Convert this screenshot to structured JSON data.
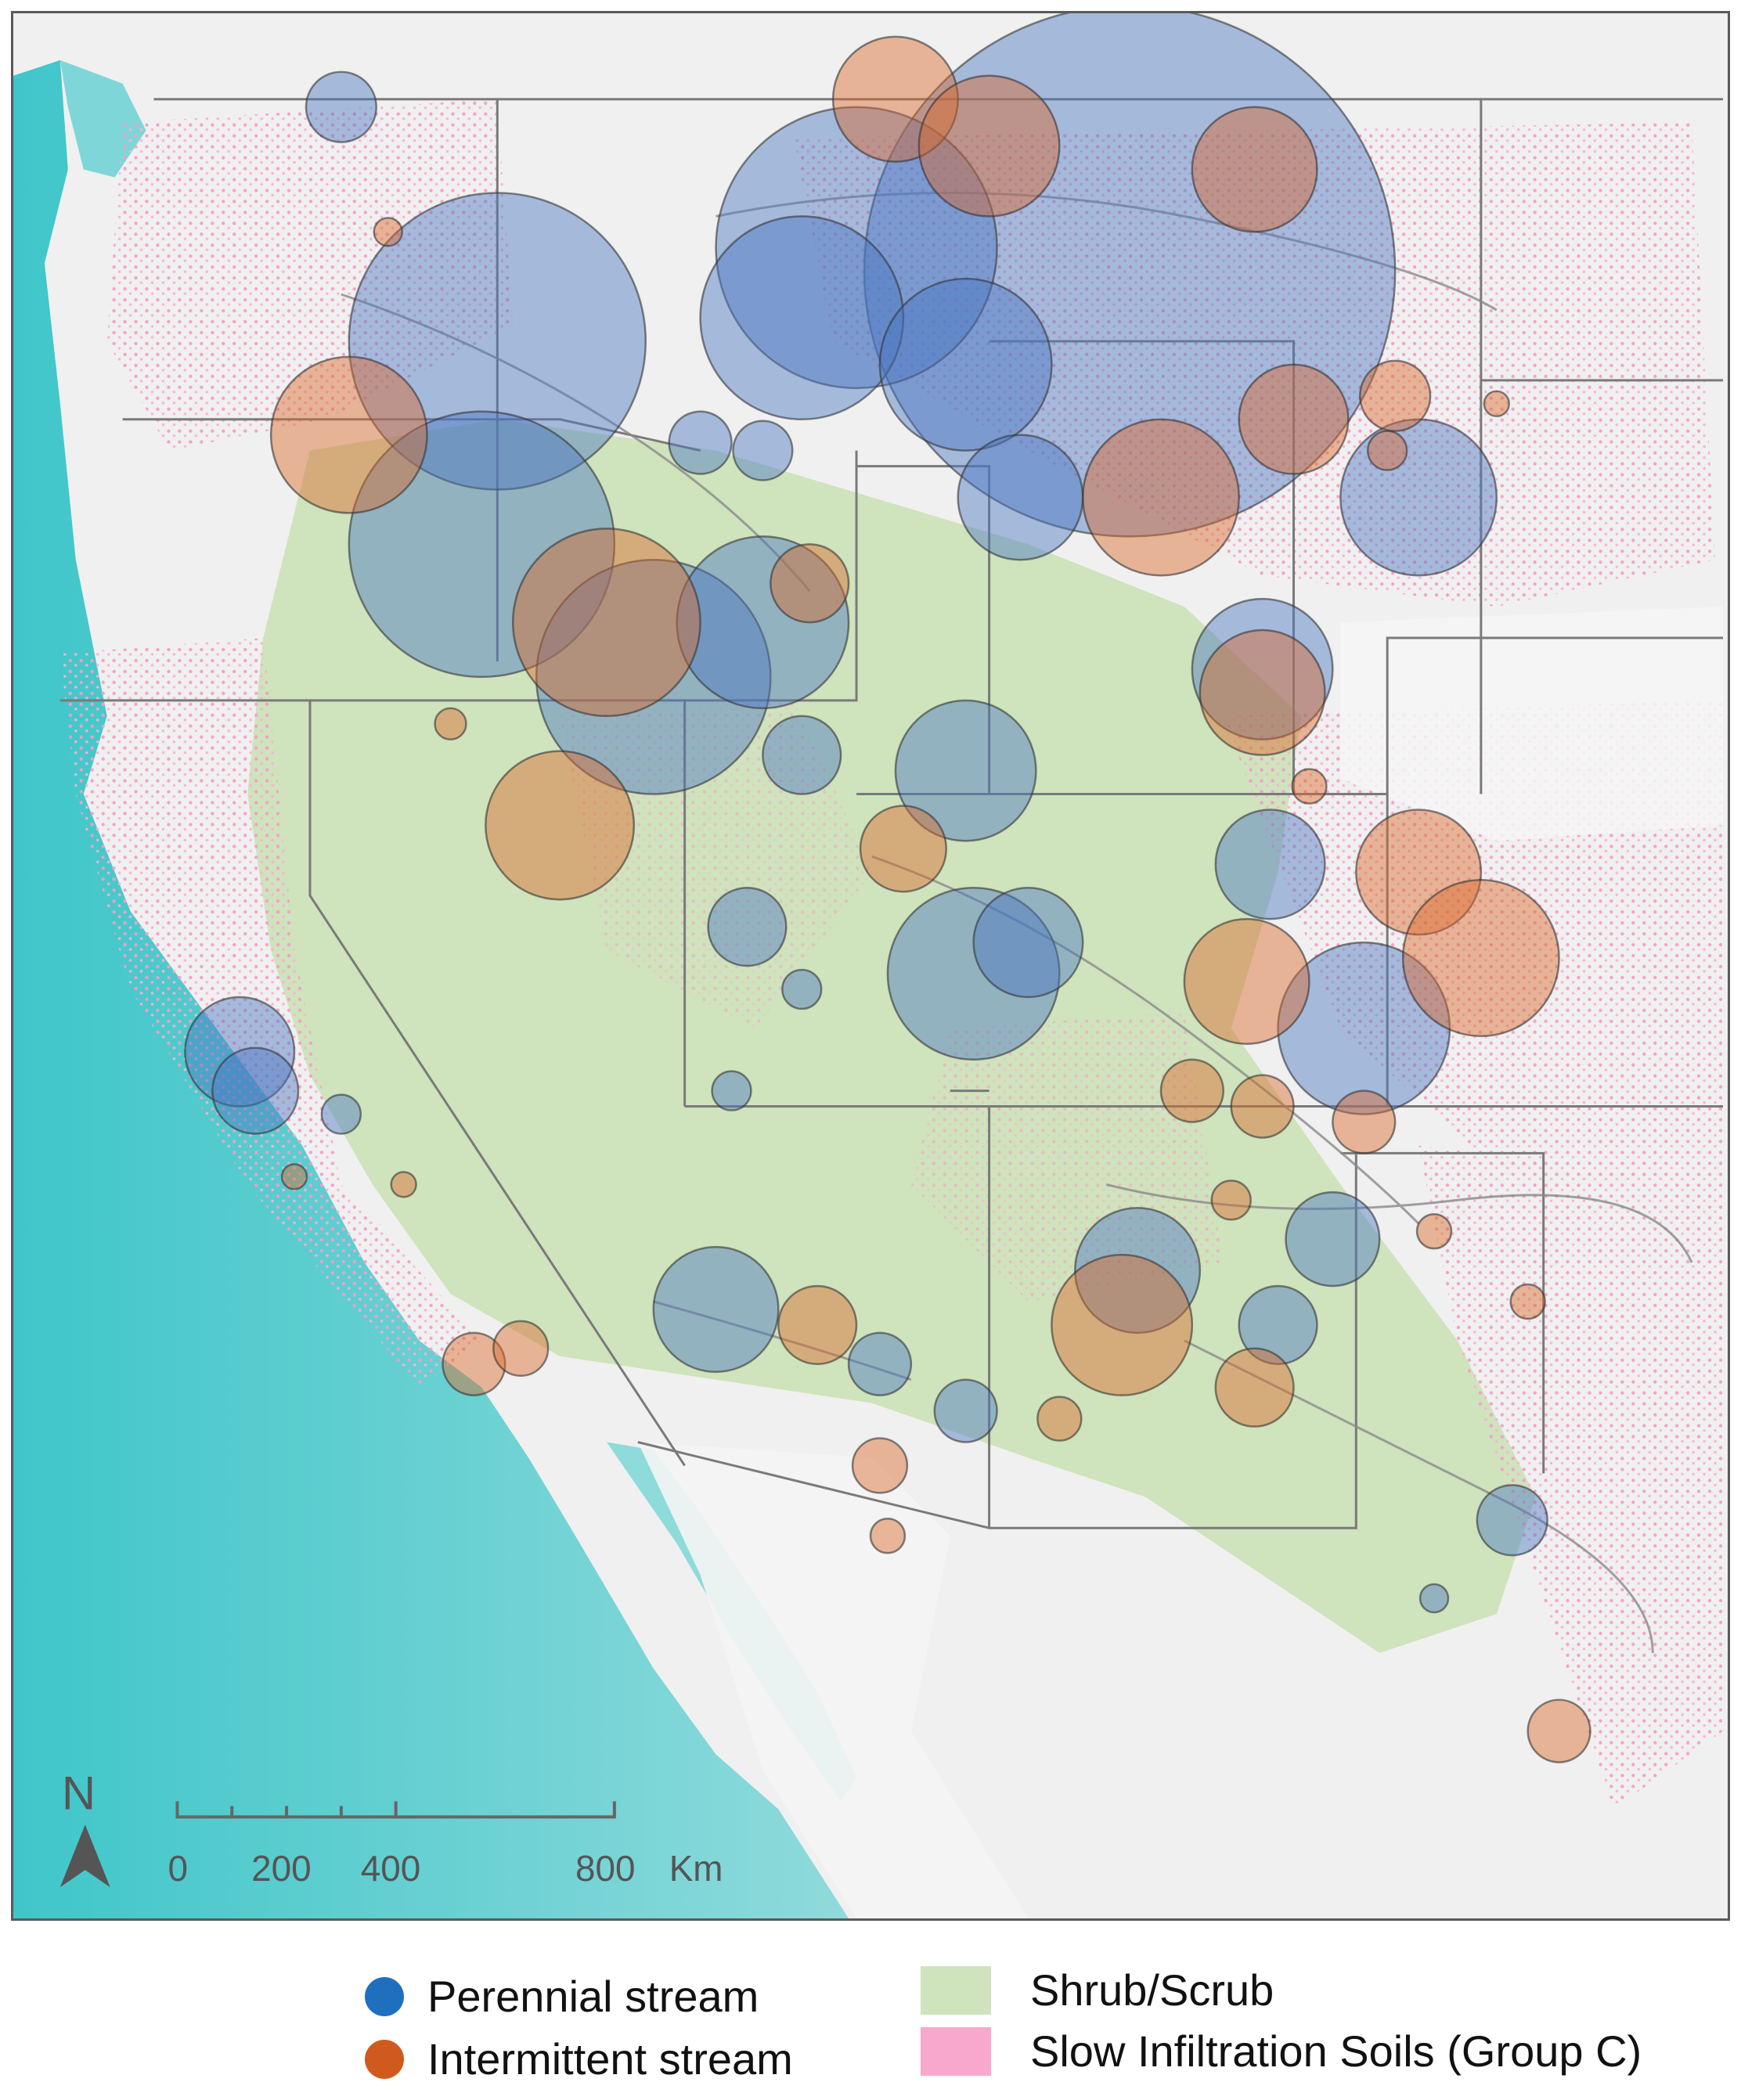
{
  "legend": {
    "perennial": {
      "label": "Perennial stream",
      "color": "#1f6fbf"
    },
    "intermittent": {
      "label": "Intermittent stream",
      "color": "#d05a1e"
    },
    "shrub": {
      "label": "Shrub/Scrub",
      "color": "#cfe3bd"
    },
    "soils": {
      "label": "Slow Infiltration Soils (Group C)",
      "color": "#f7a8cc"
    }
  },
  "scale_bar": {
    "ticks": [
      "0",
      "200",
      "400",
      "800"
    ],
    "unit": "Km"
  },
  "north_arrow": {
    "label": "N",
    "icon": "north-arrow-icon"
  },
  "colors": {
    "ocean": "#7fd6d8",
    "land": "#f1f1f1",
    "border": "#777777"
  }
}
